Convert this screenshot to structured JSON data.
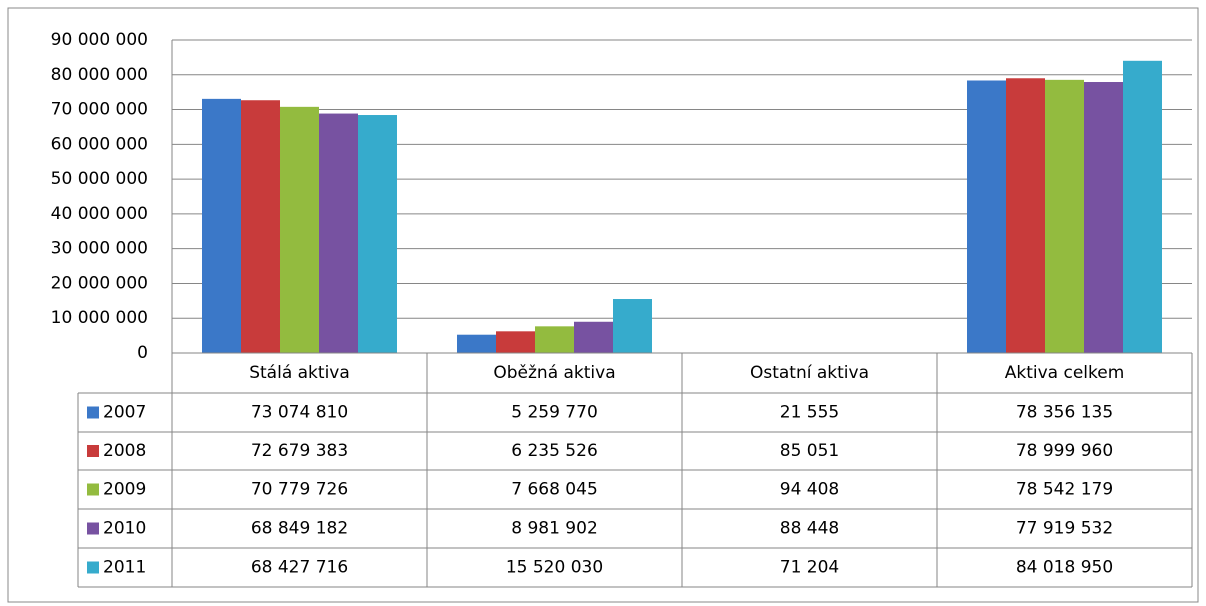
{
  "chart_data": {
    "type": "bar",
    "categories": [
      "Stálá aktiva",
      "Oběžná aktiva",
      "Ostatní aktiva",
      "Aktiva celkem"
    ],
    "series": [
      {
        "name": "2007",
        "color": "#3b78c8",
        "values": [
          73074810,
          5259770,
          21555,
          78356135
        ],
        "value_labels": [
          "73 074 810",
          "5 259 770",
          "21 555",
          "78 356 135"
        ]
      },
      {
        "name": "2008",
        "color": "#c83b3b",
        "values": [
          72679383,
          6235526,
          85051,
          78999960
        ],
        "value_labels": [
          "72 679 383",
          "6 235 526",
          "85 051",
          "78 999 960"
        ]
      },
      {
        "name": "2009",
        "color": "#93bb3f",
        "values": [
          70779726,
          7668045,
          94408,
          78542179
        ],
        "value_labels": [
          "70 779 726",
          "7 668 045",
          "94 408",
          "78 542 179"
        ]
      },
      {
        "name": "2010",
        "color": "#7752a1",
        "values": [
          68849182,
          8981902,
          88448,
          77919532
        ],
        "value_labels": [
          "68 849 182",
          "8 981 902",
          "88 448",
          "77 919 532"
        ]
      },
      {
        "name": "2011",
        "color": "#36abcc",
        "values": [
          68427716,
          15520030,
          71204,
          84018950
        ],
        "value_labels": [
          "68 427 716",
          "15 520 030",
          "71 204",
          "84 018 950"
        ]
      }
    ],
    "ylim": [
      0,
      90000000
    ],
    "yticks": [
      0,
      {
        "value": 10000000,
        "label": "10 000 000"
      },
      {
        "value": 20000000,
        "label": "20 000 000"
      },
      {
        "value": 30000000,
        "label": "30 000 000"
      },
      {
        "value": 40000000,
        "label": "40 000 000"
      },
      {
        "value": 50000000,
        "label": "50 000 000"
      },
      {
        "value": 60000000,
        "label": "60 000 000"
      },
      {
        "value": 70000000,
        "label": "70 000 000"
      },
      {
        "value": 80000000,
        "label": "80 000 000"
      },
      {
        "value": 90000000,
        "label": "90 000 000"
      }
    ],
    "grid": true
  }
}
